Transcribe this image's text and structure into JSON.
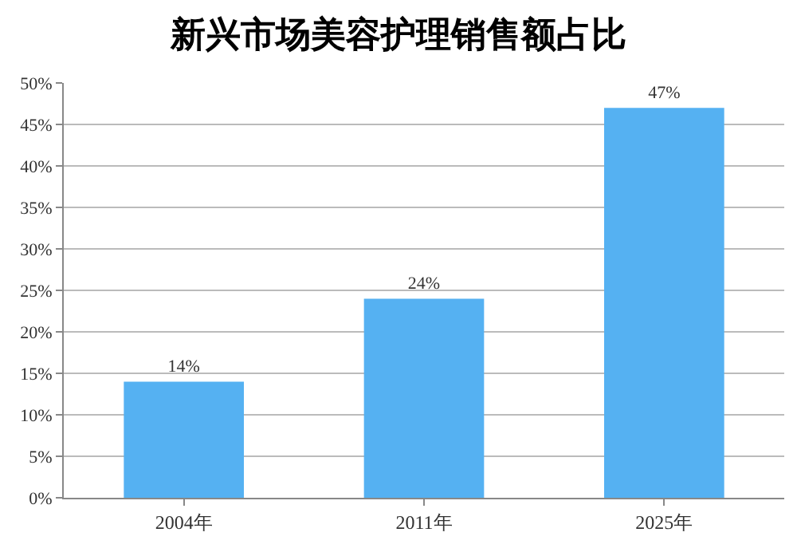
{
  "chart_data": {
    "type": "bar",
    "title": "新兴市场美容护理销售额占比",
    "categories": [
      "2004年",
      "2011年",
      "2025年"
    ],
    "values": [
      14,
      24,
      47
    ],
    "value_labels": [
      "14%",
      "24%",
      "47%"
    ],
    "color": "#55b1f2",
    "ylim": [
      0,
      50
    ],
    "yticks": [
      {
        "value": 0,
        "label": "0%"
      },
      {
        "value": 5,
        "label": "5%"
      },
      {
        "value": 10,
        "label": "10%"
      },
      {
        "value": 15,
        "label": "15%"
      },
      {
        "value": 20,
        "label": "20%"
      },
      {
        "value": 25,
        "label": "25%"
      },
      {
        "value": 30,
        "label": "30%"
      },
      {
        "value": 35,
        "label": "35%"
      },
      {
        "value": 40,
        "label": "40%"
      },
      {
        "value": 45,
        "label": "45%"
      },
      {
        "value": 50,
        "label": "50%"
      }
    ],
    "grid": "y",
    "legend": false
  }
}
